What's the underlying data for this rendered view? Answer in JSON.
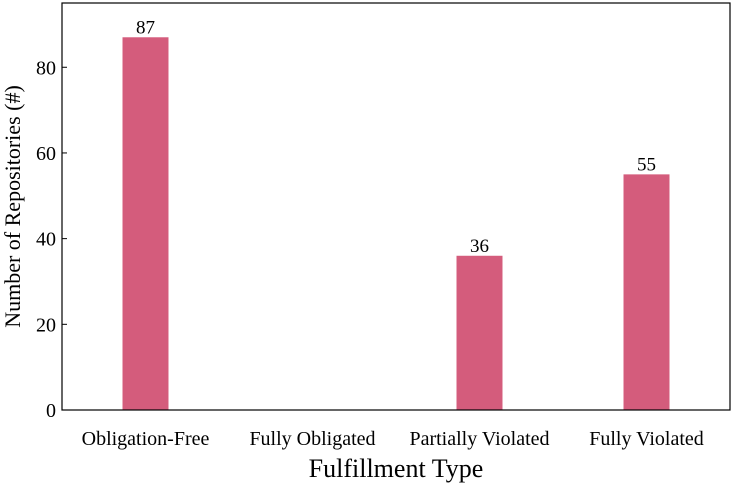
{
  "chart_data": {
    "type": "bar",
    "categories": [
      "Obligation-Free",
      "Fully Obligated",
      "Partially Violated",
      "Fully Violated"
    ],
    "values": [
      87,
      0,
      36,
      55
    ],
    "data_labels": [
      "87",
      "",
      "36",
      "55"
    ],
    "xlabel": "Fulfillment Type",
    "ylabel": "Number of Repositories (#)",
    "ylim": [
      0,
      95
    ],
    "yticks": [
      0,
      20,
      40,
      60,
      80
    ],
    "grid": false,
    "bar_color": "#d45c7c"
  }
}
